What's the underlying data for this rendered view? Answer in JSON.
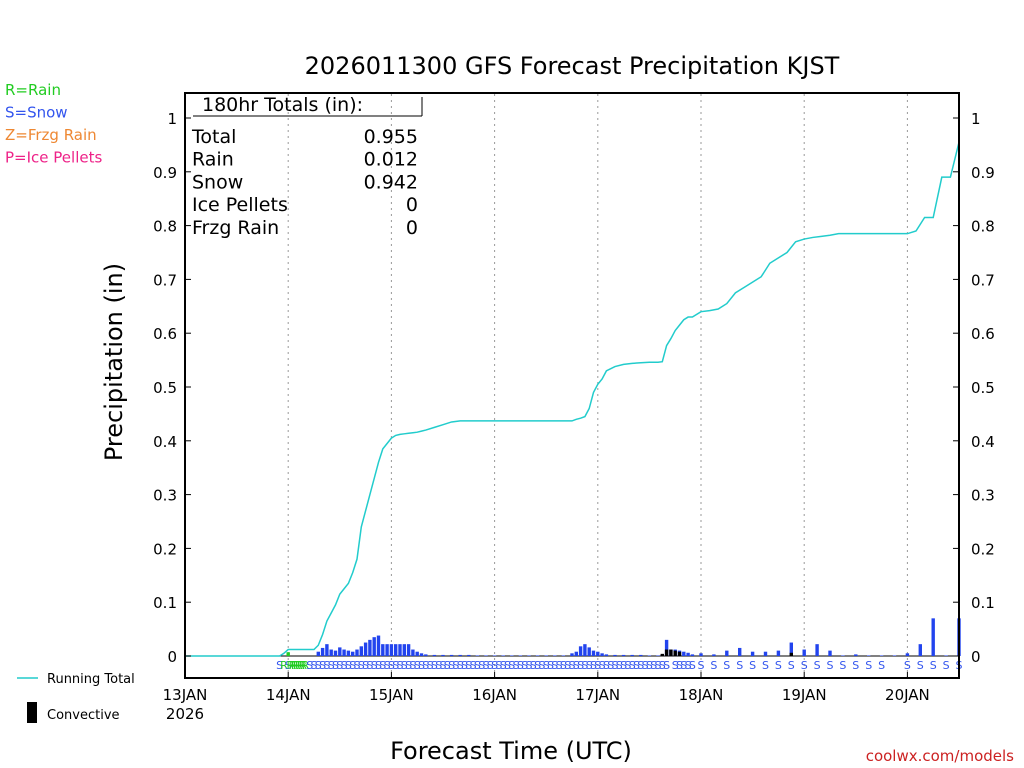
{
  "chart_data": {
    "type": "bar+line",
    "title": "2026011300 GFS Forecast Precipitation KJST",
    "xlabel": "Forecast Time (UTC)",
    "ylabel": "Precipitation (in)",
    "ylim": [
      0,
      1.05
    ],
    "y_ticks": [
      0,
      0.1,
      0.2,
      0.3,
      0.4,
      0.5,
      0.6,
      0.7,
      0.8,
      0.9,
      1
    ],
    "y_tick_labels": [
      "0",
      "0.1",
      "0.2",
      "0.3",
      "0.4",
      "0.5",
      "0.6",
      "0.7",
      "0.8",
      "0.9",
      "1"
    ],
    "xlim_hours": [
      0,
      180
    ],
    "x_ticks": [
      {
        "hour": 0,
        "label": "13JAN",
        "sublabel": "2026"
      },
      {
        "hour": 24,
        "label": "14JAN",
        "sublabel": ""
      },
      {
        "hour": 48,
        "label": "15JAN",
        "sublabel": ""
      },
      {
        "hour": 72,
        "label": "16JAN",
        "sublabel": ""
      },
      {
        "hour": 96,
        "label": "17JAN",
        "sublabel": ""
      },
      {
        "hour": 120,
        "label": "18JAN",
        "sublabel": ""
      },
      {
        "hour": 144,
        "label": "19JAN",
        "sublabel": ""
      },
      {
        "hour": 168,
        "label": "20JAN",
        "sublabel": ""
      }
    ],
    "precip_type_legend": [
      {
        "text": "R=Rain",
        "color": "#22cc22"
      },
      {
        "text": "S=Snow",
        "color": "#3355ee"
      },
      {
        "text": "Z=Frzg Rain",
        "color": "#ee8833"
      },
      {
        "text": "P=Ice Pellets",
        "color": "#ee2288"
      }
    ],
    "totals_box": {
      "header": "180hr Totals (in):",
      "rows": [
        {
          "label": "Total",
          "value": "0.955"
        },
        {
          "label": "Rain",
          "value": "0.012"
        },
        {
          "label": "Snow",
          "value": "0.942"
        },
        {
          "label": "Ice Pellets",
          "value": "0"
        },
        {
          "label": "Frzg Rain",
          "value": "0"
        }
      ]
    },
    "series_legend": [
      {
        "name": "Running Total",
        "color": "#22cccc"
      },
      {
        "name": "Convective",
        "color": "#000000"
      }
    ],
    "running_total": {
      "hours": [
        0,
        22,
        23,
        24,
        25,
        26,
        27,
        28,
        29,
        30,
        31,
        32,
        33,
        34,
        35,
        36,
        37,
        38,
        39,
        40,
        41,
        42,
        43,
        44,
        45,
        46,
        47,
        48,
        49,
        50,
        51,
        52,
        53,
        54,
        55,
        56,
        58,
        60,
        62,
        64,
        66,
        68,
        70,
        72,
        74,
        76,
        78,
        80,
        82,
        84,
        86,
        88,
        90,
        91,
        92,
        93,
        94,
        95,
        96,
        97,
        98,
        100,
        102,
        104,
        106,
        108,
        109,
        110,
        111,
        112,
        113,
        114,
        115,
        116,
        117,
        118,
        120,
        122,
        124,
        126,
        128,
        130,
        132,
        134,
        136,
        138,
        140,
        142,
        144,
        146,
        148,
        150,
        152,
        154,
        156,
        158,
        160,
        162,
        164,
        166,
        168,
        170,
        172,
        174,
        176,
        178,
        180
      ],
      "values": [
        0,
        0,
        0.005,
        0.012,
        0.012,
        0.012,
        0.012,
        0.012,
        0.012,
        0.012,
        0.02,
        0.04,
        0.065,
        0.08,
        0.095,
        0.115,
        0.125,
        0.135,
        0.155,
        0.18,
        0.24,
        0.27,
        0.3,
        0.33,
        0.36,
        0.385,
        0.395,
        0.405,
        0.41,
        0.412,
        0.413,
        0.414,
        0.415,
        0.416,
        0.418,
        0.42,
        0.425,
        0.43,
        0.435,
        0.437,
        0.437,
        0.437,
        0.437,
        0.437,
        0.437,
        0.437,
        0.437,
        0.437,
        0.437,
        0.437,
        0.437,
        0.437,
        0.437,
        0.44,
        0.442,
        0.445,
        0.46,
        0.49,
        0.505,
        0.515,
        0.53,
        0.538,
        0.542,
        0.544,
        0.545,
        0.546,
        0.546,
        0.546,
        0.547,
        0.577,
        0.59,
        0.605,
        0.615,
        0.625,
        0.63,
        0.63,
        0.64,
        0.642,
        0.645,
        0.655,
        0.675,
        0.685,
        0.695,
        0.705,
        0.73,
        0.74,
        0.75,
        0.77,
        0.775,
        0.778,
        0.78,
        0.782,
        0.785,
        0.785,
        0.785,
        0.785,
        0.785,
        0.785,
        0.785,
        0.785,
        0.785,
        0.79,
        0.815,
        0.815,
        0.89,
        0.89,
        0.955
      ]
    },
    "bars": {
      "hours": [
        24,
        25,
        26,
        27,
        28,
        29,
        30,
        31,
        32,
        33,
        34,
        35,
        36,
        37,
        38,
        39,
        40,
        41,
        42,
        43,
        44,
        45,
        46,
        47,
        48,
        49,
        50,
        51,
        52,
        53,
        54,
        55,
        56,
        58,
        60,
        62,
        64,
        66,
        68,
        70,
        72,
        74,
        76,
        78,
        80,
        82,
        84,
        86,
        88,
        90,
        91,
        92,
        93,
        94,
        95,
        96,
        97,
        98,
        100,
        102,
        104,
        106,
        108,
        110,
        111,
        112,
        113,
        114,
        115,
        116,
        117,
        118,
        120,
        123,
        126,
        129,
        132,
        135,
        138,
        141,
        144,
        147,
        150,
        153,
        156,
        159,
        162,
        165,
        168,
        171,
        174,
        177,
        180
      ],
      "values": [
        0.007,
        0,
        0,
        0,
        0,
        0,
        0,
        0.008,
        0.015,
        0.022,
        0.012,
        0.01,
        0.016,
        0.012,
        0.01,
        0.008,
        0.012,
        0.018,
        0.025,
        0.03,
        0.035,
        0.038,
        0.022,
        0.022,
        0.022,
        0.022,
        0.022,
        0.022,
        0.022,
        0.012,
        0.008,
        0.005,
        0.003,
        0.002,
        0.002,
        0.002,
        0.002,
        0.002,
        0.001,
        0.001,
        0.001,
        0.001,
        0.001,
        0.001,
        0.001,
        0.001,
        0.001,
        0.001,
        0.001,
        0.005,
        0.008,
        0.018,
        0.022,
        0.016,
        0.01,
        0.008,
        0.005,
        0.003,
        0.002,
        0.002,
        0.002,
        0.002,
        0.001,
        0.001,
        0.002,
        0.03,
        0.012,
        0.012,
        0.01,
        0.008,
        0.006,
        0.003,
        0.005,
        0.003,
        0.01,
        0.015,
        0.008,
        0.008,
        0.01,
        0.025,
        0.012,
        0.022,
        0.01,
        0.001,
        0.003,
        0.001,
        0.001,
        0.001,
        0.005,
        0.022,
        0.07,
        0.001,
        0.07
      ],
      "convective_hours": [
        111,
        112,
        113,
        114,
        115,
        141
      ],
      "convective_values": [
        0.004,
        0.012,
        0.012,
        0.01,
        0.008,
        0.006
      ]
    },
    "precip_type_marks": [
      {
        "hour": 22,
        "type": "S"
      },
      {
        "hour": 23,
        "type": "R"
      },
      {
        "hour": 24,
        "type": "S"
      },
      {
        "hour": 24.5,
        "type": "R"
      },
      {
        "hour": 25,
        "type": "R"
      },
      {
        "hour": 25.5,
        "type": "R"
      },
      {
        "hour": 26,
        "type": "R"
      },
      {
        "hour": 26.5,
        "type": "R"
      },
      {
        "hour": 27,
        "type": "R"
      },
      {
        "hour": 27.5,
        "type": "R"
      },
      {
        "hour": 28,
        "type": "R"
      }
    ],
    "snow_mark_ranges": [
      [
        29,
        98
      ],
      [
        99,
        112
      ],
      [
        114,
        118
      ]
    ],
    "snow_mark_hours_sparse": [
      120,
      123,
      126,
      129,
      132,
      135,
      138,
      141,
      144,
      147,
      150,
      153,
      156,
      159,
      162,
      168,
      171,
      174,
      177,
      180
    ],
    "watermark": "coolwx.com/models"
  }
}
